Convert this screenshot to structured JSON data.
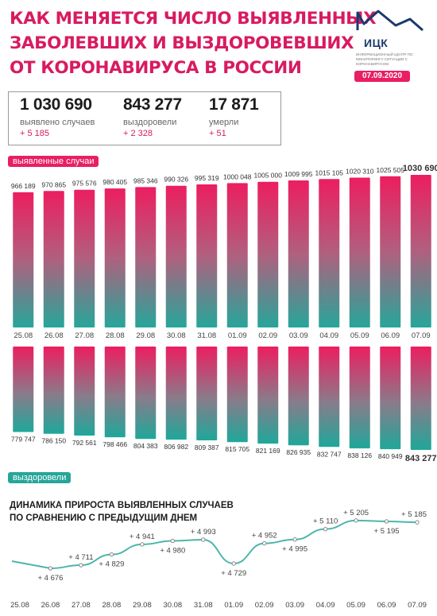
{
  "header": {
    "title_lines": [
      "КАК МЕНЯЕТСЯ ЧИСЛО ВЫЯВЛЕННЫХ",
      "ЗАБОЛЕВШИХ И ВЫЗДОРОВЕВШИХ",
      "ОТ КОРОНАВИРУСА В РОССИИ"
    ],
    "logo_text": "ИЦК",
    "logo_subtitle": "ИНФОРМАЦИОННЫЙ ЦЕНТР ПО МОНИТОРИНГУ СИТУАЦИИ С КОРОНАВИРУСОМ",
    "date": "07.09.2020"
  },
  "summary": {
    "cases": {
      "value": "1 030 690",
      "label": "выявлено случаев",
      "delta": "+ 5 185"
    },
    "recovered": {
      "value": "843 277",
      "label": "выздоровели",
      "delta": "+ 2 328"
    },
    "deaths": {
      "value": "17 871",
      "label": "умерли",
      "delta": "+ 51"
    }
  },
  "colors": {
    "pink": "#e91e63",
    "teal": "#26a69a",
    "line": "#4db6ac"
  },
  "chart_data": [
    {
      "type": "bar",
      "name": "выявленные случаи",
      "categories": [
        "25.08",
        "26.08",
        "27.08",
        "28.08",
        "29.08",
        "30.08",
        "31.08",
        "01.09",
        "02.09",
        "03.09",
        "04.09",
        "05.09",
        "06.09",
        "07.09"
      ],
      "values": [
        966189,
        970865,
        975576,
        980405,
        985346,
        990326,
        995319,
        1000048,
        1005000,
        1009995,
        1015105,
        1020310,
        1025505,
        1030690
      ],
      "labels": [
        "966 189",
        "970 865",
        "975 576",
        "980 405",
        "985 346",
        "990 326",
        "995 319",
        "1000 048",
        "1005 000",
        "1009 995",
        "1015 105",
        "1020 310",
        "1025 505",
        "1030 690"
      ]
    },
    {
      "type": "bar",
      "name": "выздоровели",
      "categories": [
        "25.08",
        "26.08",
        "27.08",
        "28.08",
        "29.08",
        "30.08",
        "31.08",
        "01.09",
        "02.09",
        "03.09",
        "04.09",
        "05.09",
        "06.09",
        "07.09"
      ],
      "values": [
        779747,
        786150,
        792561,
        798466,
        804383,
        806982,
        809387,
        815705,
        821169,
        826935,
        832747,
        838126,
        840949,
        843277
      ],
      "labels": [
        "779 747",
        "786 150",
        "792 561",
        "798 466",
        "804 383",
        "806 982",
        "809 387",
        "815 705",
        "821 169",
        "826 935",
        "832 747",
        "838 126",
        "840 949",
        "843 277"
      ]
    },
    {
      "type": "line",
      "title": "ДИНАМИКА ПРИРОСТА ВЫЯВЛЕННЫХ СЛУЧАЕВ ПО СРАВНЕНИЮ С ПРЕДЫДУЩИМ ДНЕМ",
      "title_lines": [
        "ДИНАМИКА ПРИРОСТА ВЫЯВЛЕННЫХ СЛУЧАЕВ",
        "ПО СРАВНЕНИЮ С ПРЕДЫДУЩИМ ДНЕМ"
      ],
      "categories": [
        "25.08",
        "26.08",
        "27.08",
        "28.08",
        "29.08",
        "30.08",
        "31.08",
        "01.09",
        "02.09",
        "03.09",
        "04.09",
        "05.09",
        "06.09",
        "07.09"
      ],
      "values": [
        null,
        4676,
        4711,
        4829,
        4941,
        4980,
        4993,
        4729,
        4952,
        4995,
        5110,
        5205,
        5195,
        5185
      ],
      "labels": [
        "",
        "+ 4 676",
        "+ 4 711",
        "+ 4 829",
        "+ 4 941",
        "+ 4 980",
        "+ 4 993",
        "+ 4 729",
        "+ 4 952",
        "+ 4 995",
        "+ 5 110",
        "+ 5 205",
        "+ 5 195",
        "+ 5 185"
      ]
    }
  ]
}
